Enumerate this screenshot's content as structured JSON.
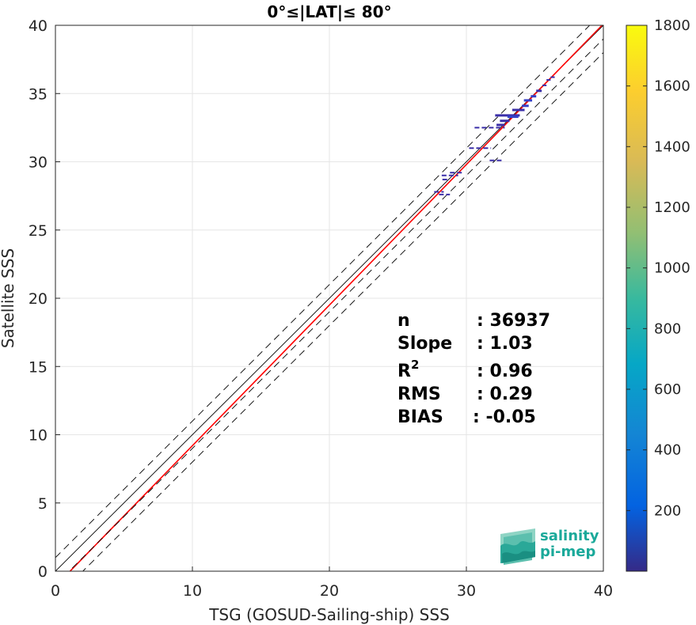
{
  "chart_data": {
    "type": "scatter",
    "title": "0°≤|LAT|≤ 80°",
    "xlabel": "TSG (GOSUD-Sailing-ship) SSS",
    "ylabel": "Satellite SSS",
    "xlim": [
      0,
      40
    ],
    "ylim": [
      0,
      40
    ],
    "xticks": [
      "0",
      "10",
      "20",
      "30",
      "40"
    ],
    "yticks": [
      "0",
      "5",
      "10",
      "15",
      "20",
      "25",
      "30",
      "35",
      "40"
    ],
    "grid": true,
    "colorbar": {
      "range": [
        0,
        1800
      ],
      "ticks": [
        "200",
        "400",
        "600",
        "800",
        "1000",
        "1200",
        "1400",
        "1600",
        "1800"
      ],
      "colormap": "parula"
    },
    "reference_lines": [
      {
        "kind": "identity",
        "slope": 1,
        "intercept": 0,
        "color": "#000000",
        "style": "solid"
      },
      {
        "kind": "regression",
        "slope": 1.03,
        "intercept": -1.1,
        "color": "#ff0000",
        "style": "solid"
      },
      {
        "kind": "offset",
        "slope": 1,
        "intercept": 1,
        "color": "#000000",
        "style": "dashed"
      },
      {
        "kind": "offset",
        "slope": 1,
        "intercept": -1,
        "color": "#000000",
        "style": "dashed"
      },
      {
        "kind": "offset",
        "slope": 1,
        "intercept": -2,
        "color": "#000000",
        "style": "dashed"
      }
    ],
    "points": [
      {
        "x": 28.0,
        "y": 27.8,
        "w": 0.7,
        "count": 5
      },
      {
        "x": 28.4,
        "y": 27.6,
        "w": 0.8,
        "count": 4
      },
      {
        "x": 28.5,
        "y": 28.7,
        "w": 0.5,
        "count": 3
      },
      {
        "x": 28.8,
        "y": 29.0,
        "w": 1.2,
        "count": 6
      },
      {
        "x": 29.3,
        "y": 29.2,
        "w": 1.0,
        "count": 3
      },
      {
        "x": 31.0,
        "y": 31.0,
        "w": 1.6,
        "count": 8
      },
      {
        "x": 32.2,
        "y": 30.1,
        "w": 1.0,
        "count": 4
      },
      {
        "x": 31.7,
        "y": 32.5,
        "w": 2.2,
        "count": 10
      },
      {
        "x": 32.5,
        "y": 32.7,
        "w": 0.6,
        "count": 60
      },
      {
        "x": 32.8,
        "y": 33.0,
        "w": 0.7,
        "count": 80
      },
      {
        "x": 33.0,
        "y": 33.4,
        "w": 1.8,
        "count": 50
      },
      {
        "x": 33.4,
        "y": 33.3,
        "w": 0.8,
        "count": 90
      },
      {
        "x": 33.8,
        "y": 33.8,
        "w": 0.9,
        "count": 70
      },
      {
        "x": 34.3,
        "y": 34.1,
        "w": 0.5,
        "count": 150
      },
      {
        "x": 34.5,
        "y": 34.5,
        "w": 0.6,
        "count": 110
      },
      {
        "x": 34.9,
        "y": 34.8,
        "w": 0.4,
        "count": 90
      },
      {
        "x": 35.3,
        "y": 35.2,
        "w": 0.4,
        "count": 60
      },
      {
        "x": 35.7,
        "y": 35.6,
        "w": 0.3,
        "count": 40
      },
      {
        "x": 36.0,
        "y": 36.0,
        "w": 0.3,
        "count": 30
      },
      {
        "x": 36.3,
        "y": 36.2,
        "w": 0.3,
        "count": 20
      }
    ],
    "stats": {
      "n": "36937",
      "slope": "1.03",
      "r2": "0.96",
      "rms": "0.29",
      "bias": "-0.05"
    }
  },
  "labels": {
    "stat_n": "n",
    "stat_slope": "Slope",
    "stat_r": "R",
    "stat_r_sup": "2",
    "stat_rms": "RMS",
    "stat_bias": "BIAS",
    "stat_n_val": ": 36937",
    "stat_slope_val": ": 1.03",
    "stat_r2_val": ": 0.96",
    "stat_rms_val": ": 0.29",
    "stat_bias_val": ": -0.05"
  },
  "logo": {
    "line1": "salinity",
    "line2": "pi-mep"
  }
}
